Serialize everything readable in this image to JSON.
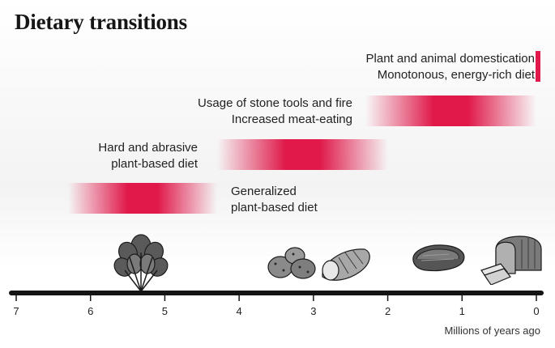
{
  "title": "Dietary transitions",
  "colors": {
    "accent": "#e0194a",
    "axis": "#141414"
  },
  "chart_data": {
    "type": "timeline-range",
    "xlabel": "Millions of years ago",
    "xlim": [
      7,
      0
    ],
    "ticks": [
      "7",
      "6",
      "5",
      "4",
      "3",
      "2",
      "1",
      "0"
    ],
    "ranges": [
      {
        "label_lines": [
          "Plant and animal domestication",
          "Monotonous, energy-rich diet"
        ],
        "start": 0.012,
        "end": 0.0
      },
      {
        "label_lines": [
          "Usage of stone tools and fire",
          "Increased meat-eating"
        ],
        "start": 2.3,
        "end": 0.0
      },
      {
        "label_lines": [
          "Hard and abrasive",
          "plant-based diet"
        ],
        "start": 4.3,
        "end": 2.0
      },
      {
        "label_lines": [
          "Generalized",
          "plant-based diet"
        ],
        "start": 6.3,
        "end": 4.3
      }
    ],
    "icons": [
      {
        "name": "leafy-greens-icon",
        "x": 5.3
      },
      {
        "name": "tubers-icon",
        "x": 3.0
      },
      {
        "name": "steak-icon",
        "x": 1.0
      },
      {
        "name": "bread-icon",
        "x": 0.15
      }
    ]
  }
}
